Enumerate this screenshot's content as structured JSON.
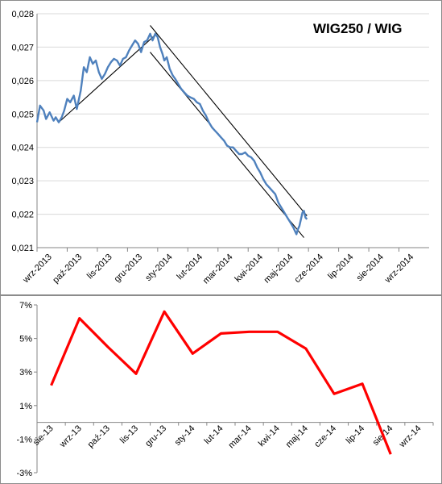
{
  "chart_data": [
    {
      "type": "line",
      "title": "WIG250 / WIG",
      "xlabel": "",
      "ylabel": "",
      "categories": [
        "wrz-2013",
        "paź-2013",
        "lis-2013",
        "gru-2013",
        "sty-2014",
        "lut-2014",
        "mar-2014",
        "kwi-2014",
        "maj-2014",
        "cze-2014",
        "lip-2014",
        "sie-2014",
        "wrz-2014"
      ],
      "ylim": [
        0.021,
        0.028
      ],
      "y_ticks": [
        "0,021",
        "0,022",
        "0,023",
        "0,024",
        "0,025",
        "0,026",
        "0,027",
        "0,028"
      ],
      "grid": true,
      "color": "#4f81bd",
      "series": [
        {
          "values": [
            [
              0.0,
              0.02475
            ],
            [
              0.1,
              0.02525
            ],
            [
              0.22,
              0.0251
            ],
            [
              0.3,
              0.02485
            ],
            [
              0.42,
              0.02505
            ],
            [
              0.55,
              0.0248
            ],
            [
              0.62,
              0.0249
            ],
            [
              0.72,
              0.02475
            ],
            [
              0.82,
              0.0249
            ],
            [
              0.9,
              0.0251
            ],
            [
              1.0,
              0.02545
            ],
            [
              1.1,
              0.02535
            ],
            [
              1.22,
              0.02555
            ],
            [
              1.32,
              0.02515
            ],
            [
              1.45,
              0.0257
            ],
            [
              1.55,
              0.0264
            ],
            [
              1.65,
              0.02625
            ],
            [
              1.75,
              0.0267
            ],
            [
              1.85,
              0.0265
            ],
            [
              1.95,
              0.0266
            ],
            [
              2.05,
              0.02625
            ],
            [
              2.15,
              0.02605
            ],
            [
              2.25,
              0.0262
            ],
            [
              2.35,
              0.0264
            ],
            [
              2.45,
              0.02655
            ],
            [
              2.55,
              0.02665
            ],
            [
              2.65,
              0.0266
            ],
            [
              2.75,
              0.02645
            ],
            [
              2.85,
              0.02665
            ],
            [
              2.95,
              0.0267
            ],
            [
              3.05,
              0.0269
            ],
            [
              3.15,
              0.02705
            ],
            [
              3.25,
              0.0272
            ],
            [
              3.35,
              0.0271
            ],
            [
              3.45,
              0.02685
            ],
            [
              3.55,
              0.02715
            ],
            [
              3.65,
              0.0272
            ],
            [
              3.75,
              0.0274
            ],
            [
              3.83,
              0.0272
            ],
            [
              3.92,
              0.0274
            ],
            [
              4.0,
              0.0273
            ],
            [
              4.08,
              0.027
            ],
            [
              4.16,
              0.0268
            ],
            [
              4.22,
              0.0266
            ],
            [
              4.3,
              0.0267
            ],
            [
              4.4,
              0.02635
            ],
            [
              4.5,
              0.02615
            ],
            [
              4.58,
              0.02605
            ],
            [
              4.68,
              0.0259
            ],
            [
              4.78,
              0.02575
            ],
            [
              4.88,
              0.02565
            ],
            [
              4.98,
              0.02555
            ],
            [
              5.08,
              0.0255
            ],
            [
              5.2,
              0.02545
            ],
            [
              5.3,
              0.02535
            ],
            [
              5.4,
              0.0253
            ],
            [
              5.5,
              0.0251
            ],
            [
              5.6,
              0.02495
            ],
            [
              5.7,
              0.02475
            ],
            [
              5.8,
              0.0246
            ],
            [
              5.9,
              0.0245
            ],
            [
              6.0,
              0.0244
            ],
            [
              6.1,
              0.0243
            ],
            [
              6.2,
              0.0242
            ],
            [
              6.3,
              0.02405
            ],
            [
              6.4,
              0.024
            ],
            [
              6.5,
              0.024
            ],
            [
              6.6,
              0.0239
            ],
            [
              6.7,
              0.0238
            ],
            [
              6.8,
              0.0238
            ],
            [
              6.9,
              0.02385
            ],
            [
              7.0,
              0.02375
            ],
            [
              7.1,
              0.0237
            ],
            [
              7.2,
              0.0236
            ],
            [
              7.3,
              0.0234
            ],
            [
              7.4,
              0.02325
            ],
            [
              7.5,
              0.02305
            ],
            [
              7.6,
              0.0229
            ],
            [
              7.7,
              0.0228
            ],
            [
              7.8,
              0.0227
            ],
            [
              7.9,
              0.0226
            ],
            [
              8.0,
              0.02235
            ],
            [
              8.1,
              0.0222
            ],
            [
              8.2,
              0.02205
            ],
            [
              8.3,
              0.0219
            ],
            [
              8.4,
              0.02175
            ],
            [
              8.5,
              0.0216
            ],
            [
              8.55,
              0.0215
            ],
            [
              8.6,
              0.0214
            ],
            [
              8.65,
              0.02155
            ],
            [
              8.7,
              0.02165
            ],
            [
              8.75,
              0.02185
            ],
            [
              8.8,
              0.02205
            ],
            [
              8.85,
              0.0221
            ],
            [
              8.9,
              0.0219
            ],
            [
              8.95,
              0.02185
            ]
          ]
        }
      ],
      "trendlines": [
        {
          "start": [
            0.72,
            0.02475
          ],
          "end": [
            3.9,
            0.02735
          ]
        },
        {
          "start": [
            3.75,
            0.02765
          ],
          "end": [
            8.95,
            0.02195
          ]
        },
        {
          "start": [
            3.75,
            0.02685
          ],
          "end": [
            8.85,
            0.0213
          ]
        }
      ]
    },
    {
      "type": "line",
      "title": "",
      "xlabel": "",
      "ylabel": "",
      "categories": [
        "sie-13",
        "wrz-13",
        "paź-13",
        "lis-13",
        "gru-13",
        "sty-14",
        "lut-14",
        "mar-14",
        "kwi-14",
        "maj-14",
        "cze-14",
        "lip-14",
        "sie-14",
        "wrz-14"
      ],
      "values": [
        2.2,
        6.2,
        4.5,
        2.9,
        6.6,
        4.1,
        5.3,
        5.4,
        5.4,
        4.4,
        1.7,
        2.3,
        -1.9,
        null
      ],
      "ylim": [
        -3,
        7
      ],
      "y_ticks": [
        "-3%",
        "-1%",
        "1%",
        "3%",
        "5%",
        "7%"
      ],
      "grid": false,
      "color": "#ff0000"
    }
  ]
}
